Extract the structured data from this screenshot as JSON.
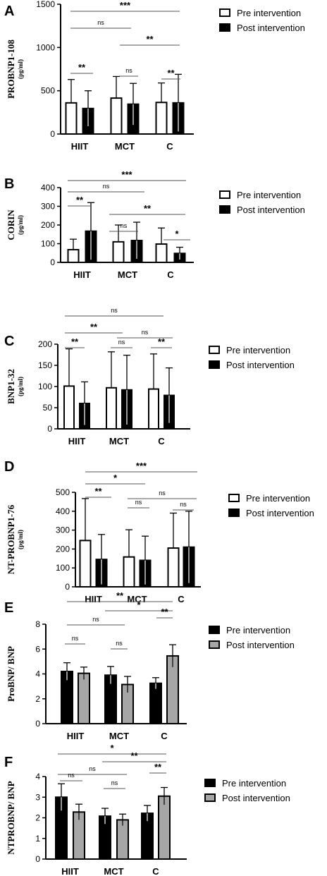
{
  "figure": {
    "groups": [
      "HIIT",
      "MCT",
      "C"
    ]
  },
  "chart_data": [
    {
      "panel": "A",
      "type": "bar",
      "ylabel_main": "PROBNP1-108",
      "ylabel_unit": "(pg/ml)",
      "ylim": [
        0,
        1500
      ],
      "yticks": [
        0,
        500,
        1000,
        1500
      ],
      "categories": [
        "HIIT",
        "MCT",
        "C"
      ],
      "series": [
        {
          "name": "Pre intervention",
          "style": "open",
          "values": [
            360,
            415,
            365
          ],
          "errors": [
            270,
            250,
            225
          ]
        },
        {
          "name": "Post intervention",
          "style": "black",
          "values": [
            295,
            345,
            360
          ],
          "errors": [
            205,
            240,
            330
          ]
        }
      ],
      "comparisons": [
        {
          "from": "HIIT-pre",
          "to": "C-pre",
          "label": "***"
        },
        {
          "from": "HIIT-pre",
          "to": "MCT-pre",
          "label": "ns"
        },
        {
          "from": "MCT-pre",
          "to": "C-post",
          "label": "**"
        },
        {
          "from": "HIIT-pre",
          "to": "HIIT-post",
          "label": "**"
        },
        {
          "from": "MCT-pre",
          "to": "MCT-post",
          "label": "ns"
        },
        {
          "from": "C-pre",
          "to": "C-post",
          "label": "**"
        }
      ]
    },
    {
      "panel": "B",
      "type": "bar",
      "ylabel_main": "CORIN",
      "ylabel_unit": "(pg/ml)",
      "ylim": [
        0,
        400
      ],
      "yticks": [
        0,
        100,
        200,
        300,
        400
      ],
      "categories": [
        "HIIT",
        "MCT",
        "C"
      ],
      "series": [
        {
          "name": "Pre intervention",
          "style": "open",
          "values": [
            68,
            110,
            98
          ],
          "errors": [
            56,
            90,
            86
          ]
        },
        {
          "name": "Post intervention",
          "style": "black",
          "values": [
            167,
            117,
            48
          ],
          "errors": [
            153,
            98,
            33
          ]
        }
      ],
      "comparisons": [
        {
          "from": "HIIT-pre",
          "to": "C-post",
          "label": "***"
        },
        {
          "from": "HIIT-pre",
          "to": "MCT-post",
          "label": "ns"
        },
        {
          "from": "HIIT-pre",
          "to": "HIIT-post",
          "label": "**"
        },
        {
          "from": "MCT-pre",
          "to": "C-post",
          "label": "**"
        },
        {
          "from": "MCT-pre",
          "to": "MCT-post",
          "label": "ns"
        },
        {
          "from": "C-pre",
          "to": "C-post",
          "label": "*"
        }
      ]
    },
    {
      "panel": "C",
      "type": "bar",
      "ylabel_main": "BNP1-32",
      "ylabel_unit": "(pg/ml)",
      "ylim": [
        0,
        200
      ],
      "yticks": [
        0,
        50,
        100,
        150,
        200
      ],
      "categories": [
        "HIIT",
        "MCT",
        "C"
      ],
      "series": [
        {
          "name": "Pre intervention",
          "style": "open",
          "values": [
            101,
            97,
            94
          ],
          "errors": [
            88,
            85,
            83
          ]
        },
        {
          "name": "Post intervention",
          "style": "black",
          "values": [
            60,
            92,
            79
          ],
          "errors": [
            51,
            82,
            65
          ]
        }
      ],
      "comparisons": [
        {
          "from": "HIIT-pre",
          "to": "C-pre",
          "label": "ns"
        },
        {
          "from": "HIIT-pre",
          "to": "MCT-pre",
          "label": "**"
        },
        {
          "from": "MCT-pre",
          "to": "C-post",
          "label": "ns"
        },
        {
          "from": "HIIT-pre",
          "to": "HIIT-post",
          "label": "**"
        },
        {
          "from": "MCT-pre",
          "to": "MCT-post",
          "label": "ns"
        },
        {
          "from": "C-pre",
          "to": "C-post",
          "label": "**"
        }
      ]
    },
    {
      "panel": "D",
      "type": "bar",
      "ylabel_main": "NT-PROBNP1-76",
      "ylabel_unit": "(pg/ml)",
      "ylim": [
        0,
        500
      ],
      "yticks": [
        0,
        100,
        200,
        300,
        400,
        500
      ],
      "categories": [
        "HIIT",
        "MCT",
        "C"
      ],
      "series": [
        {
          "name": "Pre intervention",
          "style": "open",
          "values": [
            245,
            158,
            205
          ],
          "errors": [
            222,
            144,
            185
          ]
        },
        {
          "name": "Post intervention",
          "style": "black",
          "values": [
            145,
            140,
            210
          ],
          "errors": [
            132,
            128,
            190
          ]
        }
      ],
      "comparisons": [
        {
          "from": "HIIT-pre",
          "to": "C-post",
          "label": "***"
        },
        {
          "from": "HIIT-pre",
          "to": "MCT-pre",
          "label": "*"
        },
        {
          "from": "HIIT-pre",
          "to": "HIIT-post",
          "label": "**"
        },
        {
          "from": "MCT-pre",
          "to": "C-post",
          "label": "ns"
        },
        {
          "from": "MCT-pre",
          "to": "MCT-post",
          "label": "ns"
        },
        {
          "from": "C-pre",
          "to": "C-post",
          "label": "ns"
        }
      ]
    },
    {
      "panel": "E",
      "type": "bar",
      "ylabel_main": "ProBNP/ BNP",
      "ylabel_unit": "",
      "ylim": [
        0,
        8
      ],
      "yticks": [
        0,
        2,
        4,
        6,
        8
      ],
      "categories": [
        "HIIT",
        "MCT",
        "C"
      ],
      "series": [
        {
          "name": "Pre intervention",
          "style": "black",
          "values": [
            4.2,
            3.9,
            3.25
          ],
          "errors": [
            0.7,
            0.7,
            0.45
          ]
        },
        {
          "name": "Post intervention",
          "style": "gray",
          "values": [
            4.05,
            3.15,
            5.45
          ],
          "errors": [
            0.5,
            0.65,
            0.9
          ]
        }
      ],
      "comparisons": [
        {
          "from": "HIIT-pre",
          "to": "C-post",
          "label": "**"
        },
        {
          "from": "MCT-pre",
          "to": "C-post",
          "label": "*"
        },
        {
          "from": "HIIT-pre",
          "to": "MCT-pre",
          "label": "ns"
        },
        {
          "from": "HIIT-pre",
          "to": "HIIT-post",
          "label": "ns"
        },
        {
          "from": "MCT-pre",
          "to": "MCT-post",
          "label": "ns"
        },
        {
          "from": "C-pre",
          "to": "C-post",
          "label": "**"
        }
      ]
    },
    {
      "panel": "F",
      "type": "bar",
      "ylabel_main": "NTPROBNP/ BNP",
      "ylabel_unit": "",
      "ylim": [
        0,
        4
      ],
      "yticks": [
        0,
        1,
        2,
        3,
        4
      ],
      "categories": [
        "HIIT",
        "MCT",
        "C"
      ],
      "series": [
        {
          "name": "Pre intervention",
          "style": "black",
          "values": [
            3.0,
            2.08,
            2.22
          ],
          "errors": [
            0.65,
            0.38,
            0.38
          ]
        },
        {
          "name": "Post intervention",
          "style": "gray",
          "values": [
            2.28,
            1.9,
            3.05
          ],
          "errors": [
            0.38,
            0.28,
            0.42
          ]
        }
      ],
      "comparisons": [
        {
          "from": "HIIT-pre",
          "to": "C-post",
          "label": "*"
        },
        {
          "from": "MCT-pre",
          "to": "C-post",
          "label": "**"
        },
        {
          "from": "HIIT-pre",
          "to": "MCT-pre",
          "label": "ns"
        },
        {
          "from": "HIIT-pre",
          "to": "HIIT-post",
          "label": "ns"
        },
        {
          "from": "MCT-pre",
          "to": "MCT-post",
          "label": "ns"
        },
        {
          "from": "C-pre",
          "to": "C-post",
          "label": "**"
        }
      ]
    }
  ],
  "colors": {
    "black_bar": "#000000",
    "gray_bar": "#a6a6a6",
    "open_bar": "#ffffff",
    "lines": "#000000",
    "bracket_lines": "#555555"
  }
}
